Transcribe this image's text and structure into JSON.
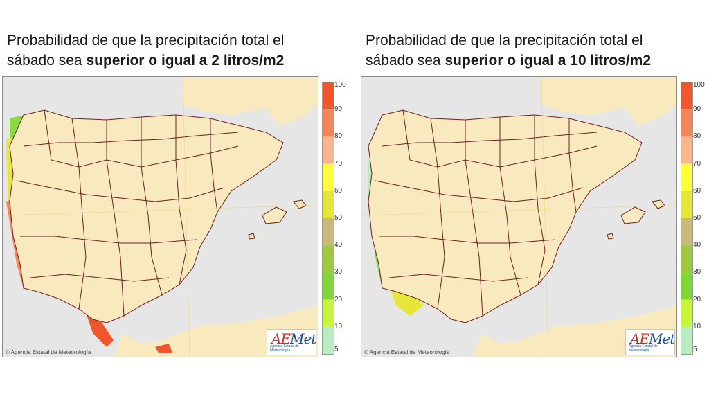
{
  "panels": [
    {
      "title_line1": "Probabilidad de que la precipitación total el",
      "title_line2_pre": "sábado sea ",
      "title_line2_bold": "superior o igual a 2 litros/m2",
      "credit": "© Agencia Estatal de Meteorología",
      "logo_text": "Met",
      "logo_accent": "AE",
      "logo_subtitle": "Agencia Estatal de Meteorología"
    },
    {
      "title_line1": "Probabilidad de que la precipitación total el",
      "title_line2_pre": "sábado sea ",
      "title_line2_bold": "superior o igual a 10 litros/m2",
      "credit": "© Agencia Estatal de Meteorología",
      "logo_text": "Met",
      "logo_accent": "AE",
      "logo_subtitle": "Agencia Estatal de Meteorología"
    }
  ],
  "legend": {
    "labels": [
      "100",
      "90",
      "80",
      "70",
      "60",
      "50",
      "40",
      "30",
      "20",
      "10",
      "5"
    ],
    "colors": [
      "#f0562b",
      "#f4855a",
      "#f7b590",
      "#ffff3d",
      "#e6e63a",
      "#c9b97a",
      "#9ec93e",
      "#7fd635",
      "#c8f53c",
      "#b9ecc2"
    ]
  },
  "colors": {
    "land": "#f8e9bf",
    "sea": "#e6e6e6",
    "border": "#6e1f1f"
  }
}
